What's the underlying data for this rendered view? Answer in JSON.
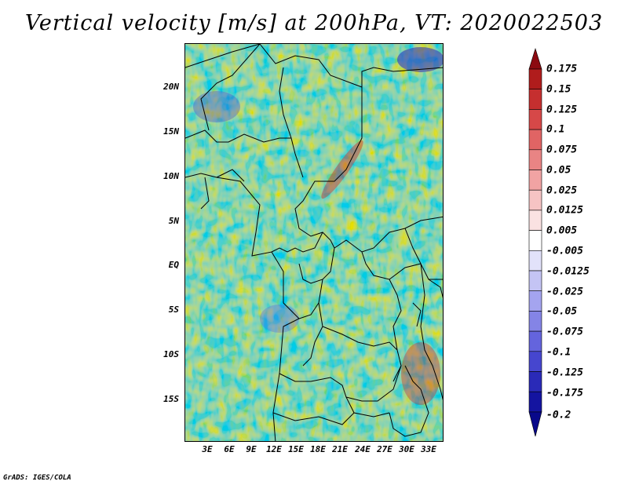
{
  "title": "Vertical velocity [m/s] at 200hPa, VT: 2020022503",
  "credit": "GrADS: IGES/COLA",
  "map": {
    "lat_labels": [
      "20N",
      "15N",
      "10N",
      "5N",
      "EQ",
      "5S",
      "10S",
      "15S"
    ],
    "lon_labels": [
      "3E",
      "6E",
      "9E",
      "12E",
      "15E",
      "18E",
      "21E",
      "24E",
      "27E",
      "30E",
      "33E"
    ]
  },
  "colorbar": {
    "labels": [
      "0.175",
      "0.15",
      "0.125",
      "0.1",
      "0.075",
      "0.05",
      "0.025",
      "0.0125",
      "0.005",
      "-0.005",
      "-0.0125",
      "-0.025",
      "-0.05",
      "-0.075",
      "-0.1",
      "-0.125",
      "-0.175",
      "-0.2"
    ],
    "colors": [
      "#8c0a10",
      "#b01c1c",
      "#c52f2f",
      "#d64848",
      "#e06464",
      "#e98484",
      "#f1a3a3",
      "#f6c4c4",
      "#fae2e2",
      "#ffffff",
      "#e2e2fa",
      "#c4c4f4",
      "#a4a4ef",
      "#8484e6",
      "#6464dd",
      "#4646cf",
      "#2a2ab8",
      "#1414a0",
      "#08088a"
    ]
  }
}
